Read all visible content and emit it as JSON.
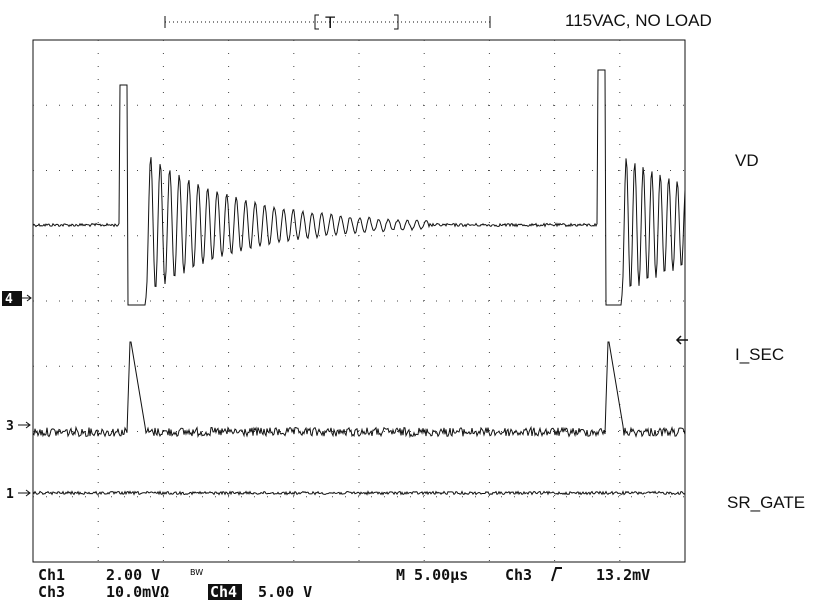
{
  "header": {
    "condition": "115VAC, NO LOAD",
    "trigger_position": "T"
  },
  "traces": [
    {
      "marker": "4",
      "label": "VD"
    },
    {
      "marker": "3",
      "label": "I_SEC"
    },
    {
      "marker": "1",
      "label": "SR_GATE"
    }
  ],
  "readout": {
    "ch1": "Ch1",
    "ch1_scale": "2.00 V",
    "bw": "BW",
    "timebase": "M 5.00µs",
    "trigger_source": "Ch3",
    "trigger_level": "13.2mV",
    "ch3": "Ch3",
    "ch3_scale": "10.0mVΩ",
    "ch4": "Ch4",
    "ch4_scale": "5.00 V"
  }
}
